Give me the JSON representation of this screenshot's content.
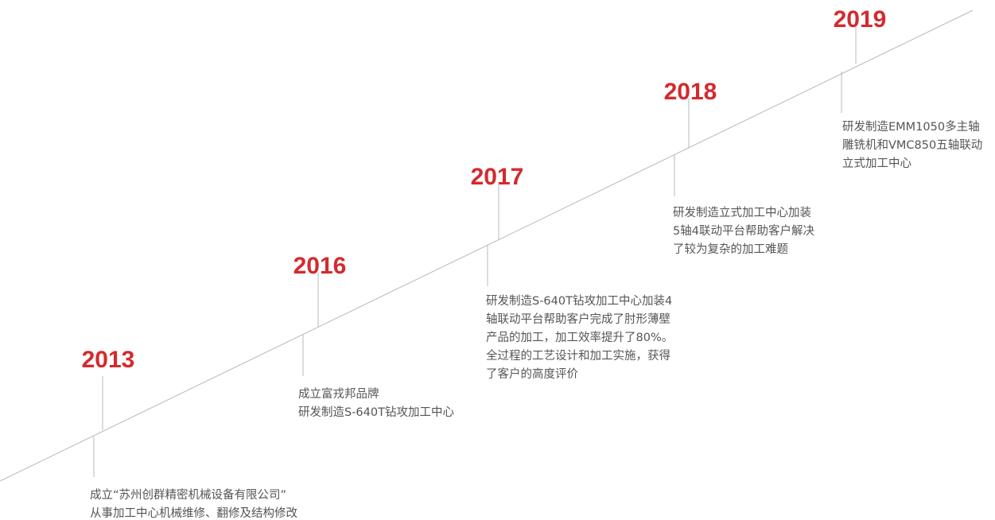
{
  "events": [
    {
      "year": "2013",
      "lines": [
        "成立“苏州创群精密机械设备有限公司”",
        "从事加工中心机械维修、翻修及结构修改"
      ]
    },
    {
      "year": "2016",
      "lines": [
        "成立富戎邦品牌",
        "研发制造S-640T钻攻加工中心"
      ]
    },
    {
      "year": "2017",
      "lines": [
        "研发制造S-640T钻攻加工中心加装4",
        "轴联动平台帮助客户完成了肘形薄壁",
        "产品的加工，加工效率提升了80%。",
        "全过程的工艺设计和加工实施，获得",
        "了客户的高度评价"
      ]
    },
    {
      "year": "2018",
      "lines": [
        "研发制造立式加工中心加装",
        "5轴4联动平台帮助客户解决",
        "了较为复杂的加工难题"
      ]
    },
    {
      "year": "2019",
      "lines": [
        "研发制造EMM1050多主轴",
        "雕铣机和VMC850五轴联动",
        "立式加工中心"
      ]
    }
  ]
}
